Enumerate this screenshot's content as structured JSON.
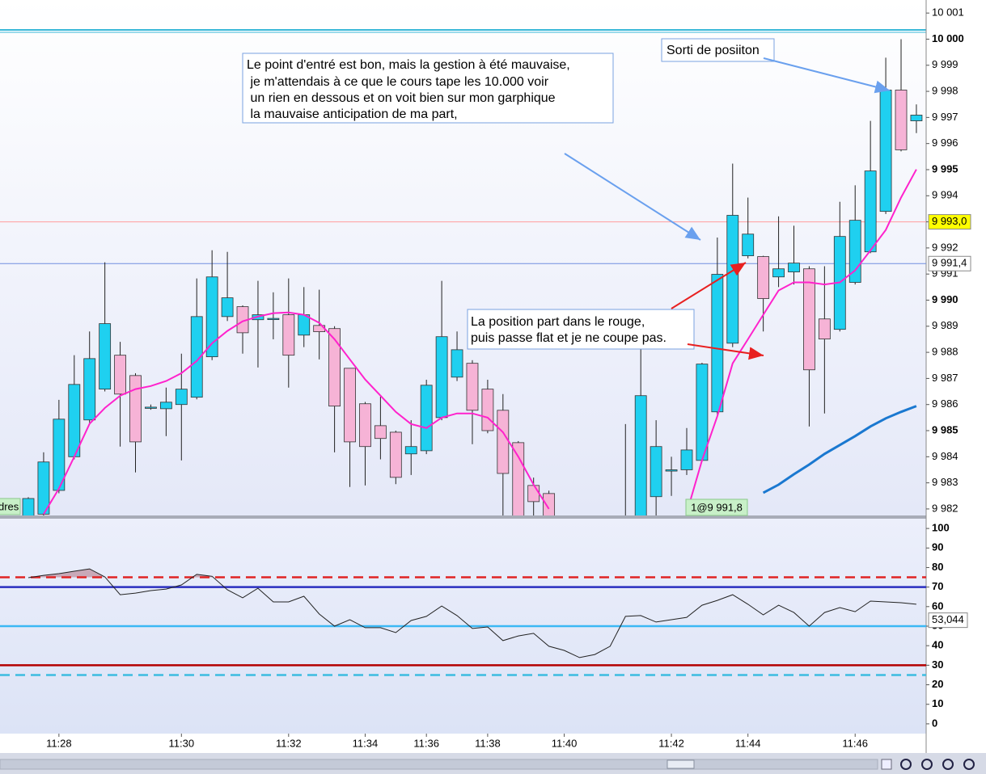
{
  "chart_data": [
    {
      "type": "candlestick",
      "categories": [
        null,
        null,
        "11:28",
        null,
        null,
        null,
        null,
        null,
        null,
        null,
        "11:30",
        null,
        null,
        null,
        null,
        null,
        null,
        "11:32",
        null,
        null,
        null,
        null,
        "11:34",
        null,
        null,
        null,
        "11:36",
        null,
        null,
        null,
        "11:38",
        null,
        null,
        null,
        null,
        "11:40",
        null,
        null,
        null,
        null,
        null,
        null,
        "11:42",
        null,
        null,
        null,
        null,
        "11:44",
        null,
        null,
        null,
        null,
        null,
        null,
        "11:46",
        null,
        null,
        null,
        null
      ],
      "open": [
        9981.5,
        9981.8,
        9982.71,
        9984.0,
        9985.41,
        9986.59,
        9987.89,
        9987.11,
        9985.9,
        9985.84,
        9986.0,
        9986.28,
        9987.83,
        9989.37,
        9989.75,
        9989.25,
        9989.3,
        9989.44,
        9988.66,
        9989.03,
        9988.91,
        9987.39,
        9986.03,
        9985.19,
        9984.94,
        9984.11,
        9984.23,
        9985.5,
        9987.05,
        9987.58,
        9986.59,
        9985.78,
        9984.54,
        9982.9,
        9982.59,
        null,
        null,
        null,
        null,
        9981.2,
        9981.5,
        9982.47,
        9983.45,
        9983.5,
        9983.86,
        9985.72,
        9988.35,
        9991.7,
        9991.67,
        9990.89,
        9991.08,
        9991.2,
        9989.28,
        9988.88,
        9990.68,
        9991.85,
        9993.4,
        9998.05,
        9996.87
      ],
      "high": [
        9982.45,
        9984.17,
        9986.18,
        9987.89,
        9988.8,
        9991.45,
        9988.4,
        9987.2,
        9986.0,
        9986.65,
        9987.95,
        9990.83,
        9991.91,
        9991.85,
        9989.8,
        9990.74,
        9990.3,
        9990.83,
        9990.5,
        9990.4,
        9989.0,
        9987.4,
        9986.1,
        9986.3,
        9985.0,
        9985.4,
        9986.95,
        9990.74,
        9988.8,
        9987.7,
        9986.95,
        9986.4,
        9984.6,
        9983.2,
        9982.7,
        null,
        null,
        null,
        null,
        9985.25,
        9988.2,
        9985.4,
        9984.0,
        9985.1,
        9987.6,
        9992.4,
        9995.23,
        9993.93,
        9991.7,
        9993.21,
        9992.85,
        9991.3,
        9991.3,
        9993.77,
        9994.4,
        9996.87,
        9999.29,
        10000.0,
        9997.5
      ],
      "low": [
        9981.2,
        9981.5,
        9982.6,
        9983.9,
        9985.3,
        9986.5,
        9984.39,
        9983.4,
        9985.8,
        9984.79,
        9983.86,
        9986.2,
        9987.7,
        9989.2,
        9987.95,
        9987.42,
        9988.5,
        9986.65,
        9988.2,
        9987.73,
        9984.17,
        9982.84,
        9982.9,
        9983.9,
        9982.95,
        9983.3,
        9984.1,
        9985.4,
        9986.9,
        9984.48,
        9984.9,
        9981.6,
        9981.0,
        9981.5,
        9981.2,
        null,
        null,
        null,
        null,
        9981.0,
        9981.3,
        9981.5,
        9982.5,
        9983.3,
        9983.8,
        9985.6,
        9988.2,
        9991.6,
        9988.8,
        9990.5,
        9990.6,
        9985.16,
        9985.66,
        9988.8,
        9990.6,
        9991.8,
        9993.3,
        9995.7,
        9996.4
      ],
      "close": [
        9982.4,
        9983.8,
        9985.44,
        9986.77,
        9987.76,
        9989.1,
        9986.4,
        9984.57,
        9985.9,
        9986.09,
        9986.59,
        9989.37,
        9990.89,
        9990.09,
        9988.75,
        9989.44,
        9989.3,
        9987.89,
        9989.44,
        9988.79,
        9985.94,
        9984.57,
        9984.39,
        9984.7,
        9983.21,
        9984.39,
        9986.74,
        9988.6,
        9988.1,
        9985.78,
        9985.0,
        9983.36,
        9981.5,
        9982.28,
        9981.6,
        null,
        null,
        null,
        null,
        9981.6,
        9986.34,
        9984.39,
        9983.5,
        9984.26,
        9987.55,
        9990.99,
        9993.25,
        9992.53,
        9990.06,
        9991.2,
        9991.42,
        9987.33,
        9988.51,
        9992.44,
        9993.06,
        9994.95,
        9998.05,
        9995.76,
        9997.09
      ],
      "up_color": "#1fd0f0",
      "down_color": "#f6b3d6",
      "lines": [
        {
          "color": "#ff22cc",
          "values": [
            null,
            9981.8,
            9982.78,
            9984.0,
            9985.26,
            9985.87,
            9986.34,
            9986.59,
            9986.71,
            9986.9,
            9987.2,
            9987.67,
            9988.35,
            9988.82,
            9989.19,
            9989.37,
            9989.5,
            9989.53,
            9989.44,
            9989.13,
            9988.5,
            9987.73,
            9986.96,
            9986.34,
            9985.72,
            9985.25,
            9985.1,
            9985.5,
            9985.66,
            9985.66,
            9985.5,
            9984.94,
            9984.0,
            9982.93,
            9982.0,
            null,
            null,
            null,
            null,
            null,
            null,
            null,
            null,
            9981.85,
            9983.86,
            9985.56,
            9987.58,
            9988.5,
            9989.44,
            9990.37,
            9990.68,
            9990.68,
            9990.6,
            9990.68,
            9991.14,
            9991.91,
            9992.69,
            9993.93,
            9995.01
          ]
        },
        {
          "color": "#1a78d0",
          "values": [
            null,
            null,
            null,
            null,
            null,
            null,
            null,
            null,
            null,
            null,
            null,
            null,
            null,
            null,
            null,
            null,
            null,
            null,
            null,
            null,
            null,
            null,
            null,
            null,
            null,
            null,
            null,
            null,
            null,
            null,
            null,
            null,
            null,
            null,
            null,
            null,
            null,
            null,
            null,
            null,
            null,
            null,
            null,
            null,
            null,
            null,
            null,
            null,
            9982.62,
            9982.93,
            9983.33,
            9983.7,
            9984.11,
            9984.45,
            9984.79,
            9985.16,
            9985.47,
            9985.72,
            9985.94
          ]
        }
      ],
      "levels": [
        {
          "value": 9993.0,
          "label": "9 993,0",
          "color": "#ff9c9c",
          "label_background": "#ffff00"
        },
        {
          "value": 9991.4,
          "label": "9 991,4",
          "color": "#7090e0",
          "label_background": "#ffffff"
        }
      ],
      "ylim": [
        9981.75,
        10001.5
      ],
      "yticks": [
        {
          "value": 10001,
          "label": "10 001"
        },
        {
          "value": 10000,
          "label": "10 000"
        },
        {
          "value": 9999,
          "label": "9 999"
        },
        {
          "value": 9998,
          "label": "9 998"
        },
        {
          "value": 9997,
          "label": "9 997"
        },
        {
          "value": 9996,
          "label": "9 996"
        },
        {
          "value": 9995,
          "label": "9 995"
        },
        {
          "value": 9994,
          "label": "9 994"
        },
        {
          "value": 9993,
          "label": "9 993"
        },
        {
          "value": 9992,
          "label": "9 992"
        },
        {
          "value": 9991,
          "label": "9 991"
        },
        {
          "value": 9990,
          "label": "9 990"
        },
        {
          "value": 9989,
          "label": "9 989"
        },
        {
          "value": 9988,
          "label": "9 988"
        },
        {
          "value": 9987,
          "label": "9 987"
        },
        {
          "value": 9986,
          "label": "9 986"
        },
        {
          "value": 9985,
          "label": "9 985"
        },
        {
          "value": 9984,
          "label": "9 984"
        },
        {
          "value": 9983,
          "label": "9 983"
        },
        {
          "value": 9982,
          "label": "9 982"
        }
      ],
      "entry_label": "1@9 991,8",
      "cut_label": "dres",
      "annotations": [
        {
          "lines": [
            "Le point d'entré est bon, mais la gestion à été mauvaise,",
            " je m'attendais à ce que le cours tape les 10.000 voir",
            " un rien en dessous et on voit bien sur mon garphique",
            " la mauvaise anticipation de ma part,"
          ]
        },
        {
          "lines": [
            "Sorti de posiiton"
          ]
        },
        {
          "lines": [
            "La position part dans le rouge,",
            "puis passe flat et je ne coupe pas."
          ]
        }
      ]
    },
    {
      "type": "line",
      "values": [
        74.8,
        76.0,
        76.9,
        78.1,
        79.3,
        75.2,
        66.1,
        66.9,
        68.2,
        69.0,
        71.1,
        76.5,
        75.5,
        68.6,
        64.5,
        69.4,
        62.4,
        62.4,
        65.3,
        56.2,
        50.0,
        53.3,
        49.2,
        49.2,
        46.7,
        52.9,
        55.0,
        60.3,
        55.4,
        48.8,
        49.6,
        42.6,
        45.0,
        46.3,
        39.7,
        37.6,
        33.9,
        35.5,
        39.7,
        55.0,
        55.4,
        52.1,
        53.3,
        54.5,
        60.7,
        63.2,
        66.1,
        61.2,
        55.8,
        60.7,
        57.0,
        50.0,
        57.0,
        59.5,
        57.4,
        62.8,
        62.4,
        62.0,
        61.2
      ],
      "color": "#222222",
      "fill_above": 75,
      "fill_color": "#c9a9b8",
      "levels": [
        {
          "value": 75,
          "color": "#e02424",
          "dashed": true
        },
        {
          "value": 70,
          "color": "#2a2ec0",
          "dashed": false
        },
        {
          "value": 50,
          "color": "#3cb8f4",
          "dashed": false
        },
        {
          "value": 30,
          "color": "#b40000",
          "dashed": false
        },
        {
          "value": 25,
          "color": "#3cbce0",
          "dashed": true
        }
      ],
      "value_label": {
        "value": 53.044,
        "label": "53,044"
      },
      "ylim": [
        -5,
        105
      ],
      "yticks": [
        0,
        10,
        20,
        30,
        40,
        50,
        60,
        70,
        80,
        90,
        100
      ]
    }
  ]
}
